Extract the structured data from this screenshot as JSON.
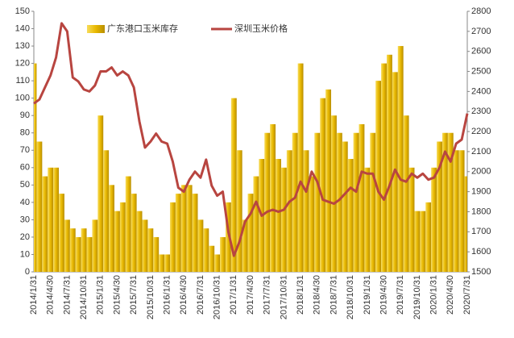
{
  "chart_data": {
    "type": "bar_line",
    "categories": [
      "2014/1/31",
      null,
      null,
      "2014/4/30",
      null,
      null,
      "2014/7/31",
      null,
      null,
      "2014/10/31",
      null,
      null,
      "2015/1/31",
      null,
      null,
      "2015/4/30",
      null,
      null,
      "2015/7/31",
      null,
      null,
      "2015/10/31",
      null,
      null,
      "2016/1/31",
      null,
      null,
      "2016/4/30",
      null,
      null,
      "2016/7/31",
      null,
      null,
      "2016/10/31",
      null,
      null,
      "2017/1/31",
      null,
      null,
      "2017/4/30",
      null,
      null,
      "2017/7/31",
      null,
      null,
      "2017/10/31",
      null,
      null,
      "2018/1/31",
      null,
      null,
      "2018/4/30",
      null,
      null,
      "2018/7/31",
      null,
      null,
      "2018/10/31",
      null,
      null,
      "2019/1/31",
      null,
      null,
      "2019/4/30",
      null,
      null,
      "2019/7/31",
      null,
      null,
      "2019/10/31",
      null,
      null,
      "2020/1/31",
      null,
      null,
      "2020/4/30",
      null,
      null,
      "2020/7/31"
    ],
    "series": [
      {
        "name": "广东港口玉米库存",
        "color": "#e8b800",
        "type": "bar",
        "values": [
          120,
          75,
          55,
          60,
          60,
          45,
          30,
          25,
          20,
          25,
          20,
          30,
          90,
          70,
          50,
          35,
          40,
          55,
          45,
          35,
          30,
          25,
          20,
          10,
          10,
          40,
          45,
          50,
          50,
          45,
          30,
          25,
          15,
          10,
          20,
          40,
          100,
          70,
          30,
          45,
          55,
          65,
          80,
          85,
          65,
          60,
          70,
          80,
          120,
          70,
          55,
          80,
          100,
          105,
          90,
          80,
          75,
          65,
          80,
          85,
          60,
          80,
          110,
          120,
          125,
          115,
          130,
          90,
          60,
          35,
          35,
          40,
          60,
          75,
          80,
          80,
          70,
          70,
          55
        ]
      },
      {
        "name": "深圳玉米价格",
        "color": "#b84540",
        "type": "line",
        "axis": "y2",
        "values": [
          2340,
          2360,
          2420,
          2480,
          2570,
          2740,
          2700,
          2470,
          2450,
          2410,
          2400,
          2430,
          2500,
          2500,
          2520,
          2480,
          2500,
          2480,
          2420,
          2250,
          2120,
          2150,
          2190,
          2150,
          2140,
          2050,
          1920,
          1900,
          1960,
          2000,
          1970,
          2060,
          1930,
          1880,
          1900,
          1700,
          1580,
          1650,
          1750,
          1790,
          1850,
          1780,
          1800,
          1810,
          1800,
          1810,
          1850,
          1870,
          1950,
          1900,
          2000,
          1950,
          1860,
          1850,
          1840,
          1860,
          1890,
          1920,
          1900,
          2000,
          1990,
          1990,
          1900,
          1860,
          1930,
          2010,
          1960,
          1950,
          1990,
          1970,
          1990,
          1960,
          1970,
          2020,
          2100,
          2050,
          2140,
          2160,
          2290
        ]
      }
    ],
    "ylim": [
      0,
      150
    ],
    "yticks": [
      0,
      10,
      20,
      30,
      40,
      50,
      60,
      70,
      80,
      90,
      100,
      110,
      120,
      130,
      140,
      150
    ],
    "y2lim": [
      1500,
      2800
    ],
    "y2ticks": [
      1500,
      1600,
      1700,
      1800,
      1900,
      2000,
      2100,
      2200,
      2300,
      2400,
      2500,
      2600,
      2700,
      2800
    ],
    "legend": "top"
  }
}
